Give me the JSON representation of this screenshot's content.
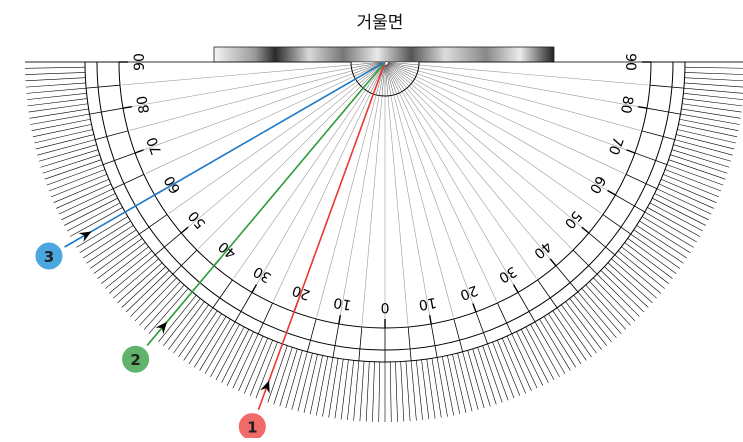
{
  "title": "거울면",
  "scale": {
    "left_labels": [
      "90",
      "80",
      "70",
      "60",
      "50",
      "40",
      "30",
      "20",
      "10",
      "0"
    ],
    "right_labels": [
      "10",
      "20",
      "30",
      "40",
      "50",
      "60",
      "70",
      "80",
      "90"
    ],
    "step_degrees": 10,
    "minor_step_degrees": 1
  },
  "rays": [
    {
      "id": "1",
      "label": "1",
      "angle_deg": 20,
      "color": "#e53935",
      "badge_color": "#f06a6a"
    },
    {
      "id": "2",
      "label": "2",
      "angle_deg": 40,
      "color": "#2e9b3a",
      "badge_color": "#5fb36a"
    },
    {
      "id": "3",
      "label": "3",
      "angle_deg": 60,
      "color": "#1e78c8",
      "badge_color": "#4aa7e0"
    }
  ],
  "colors": {
    "line": "#000000",
    "guide": "#9a9a9a"
  }
}
